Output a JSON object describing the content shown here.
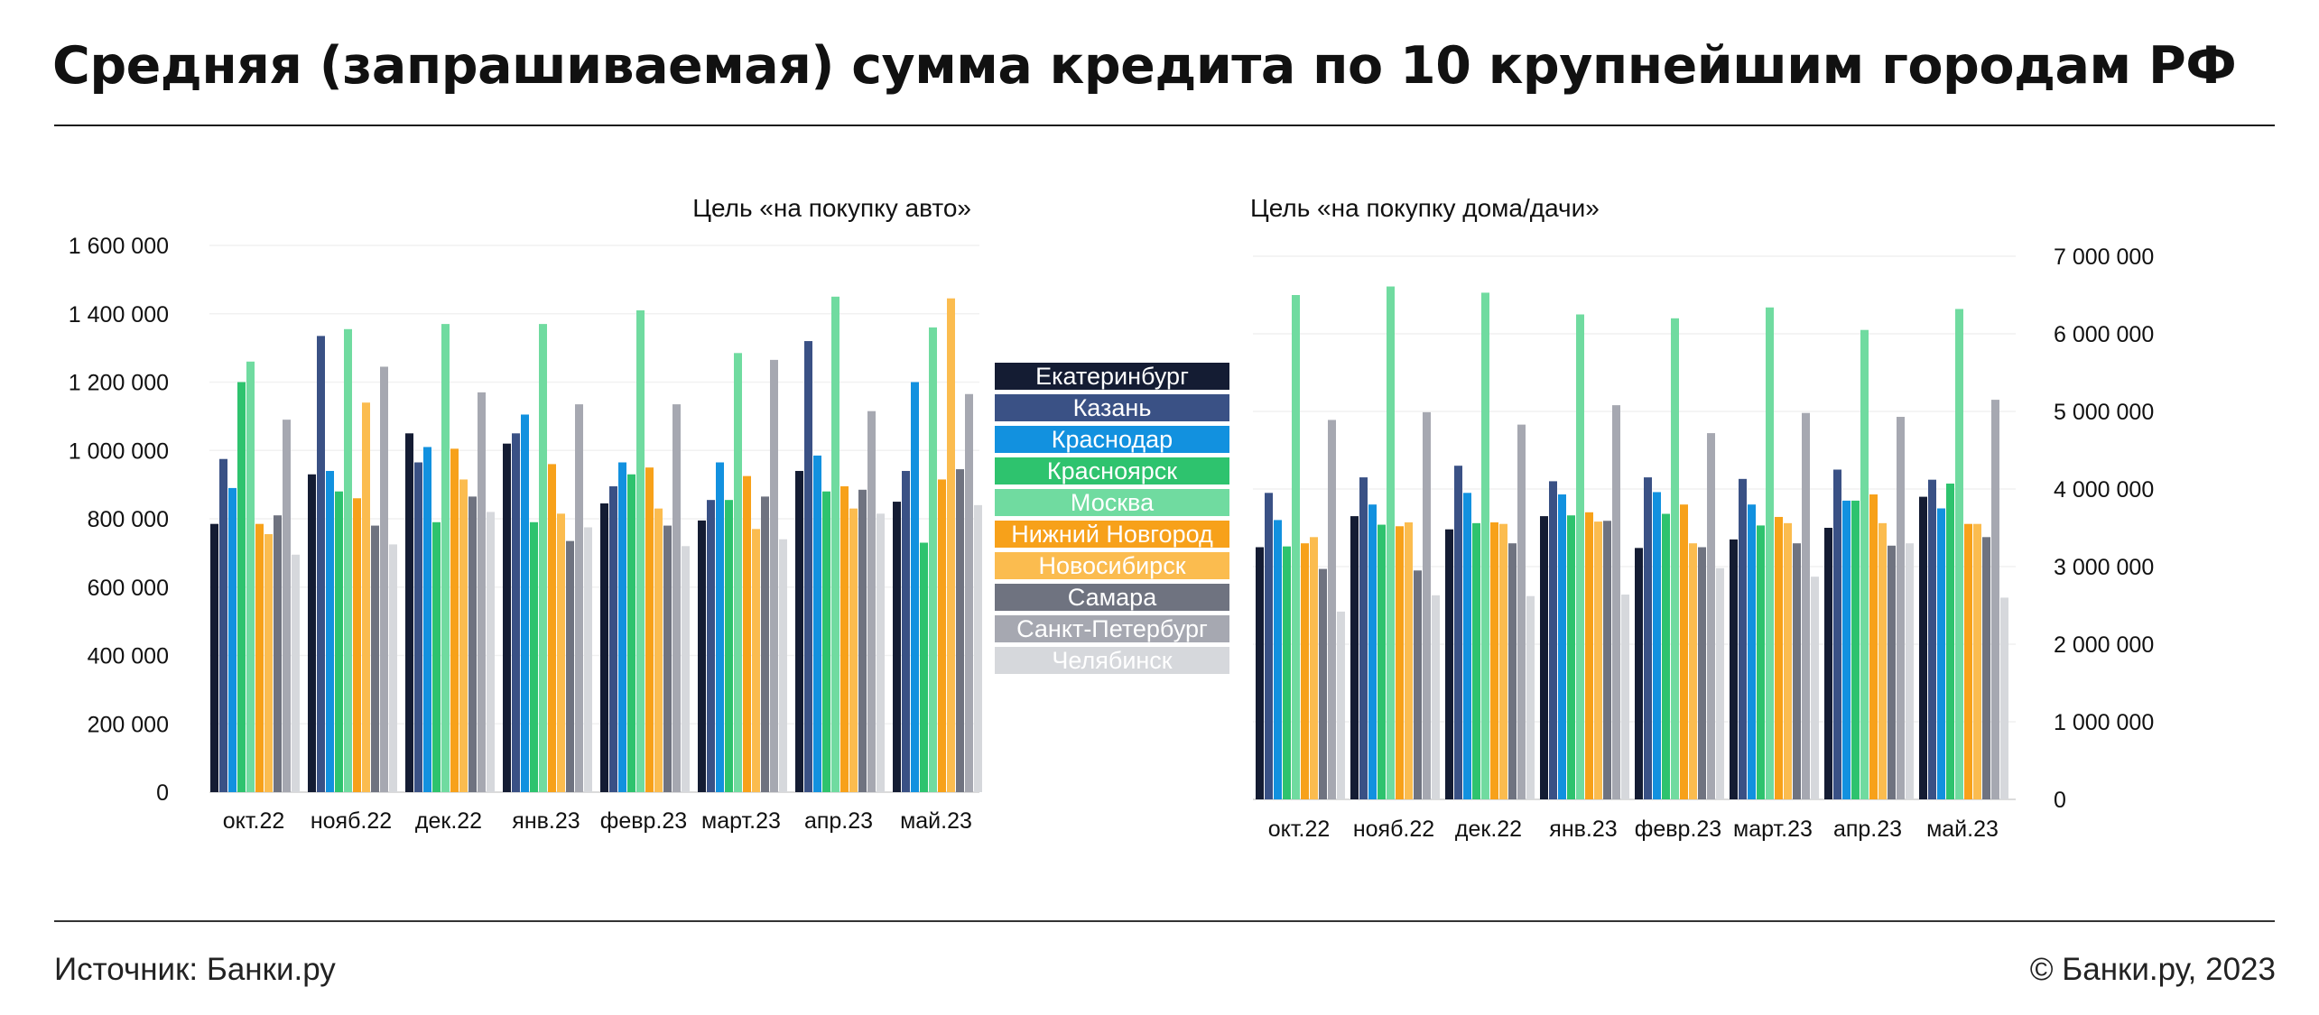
{
  "header": {
    "title": "Средняя (запрашиваемая) сумма кредита по 10 крупнейшим городам РФ"
  },
  "footer": {
    "source": "Источник: Банки.ру",
    "copyright": "© Банки.ру, 2023"
  },
  "colors": {
    "Екатеринбург": "#141c33",
    "Казань": "#3a5185",
    "Краснодар": "#1291df",
    "Красноярск": "#2ec36e",
    "Москва": "#70dba0",
    "Нижний Новгород": "#f7a11a",
    "Новосибирск": "#fbbc4f",
    "Самара": "#6f7380",
    "Санкт-Петербург": "#a6a8b1",
    "Челябинск": "#d6d8dc"
  },
  "legend": [
    "Екатеринбург",
    "Казань",
    "Краснодар",
    "Красноярск",
    "Москва",
    "Нижний Новгород",
    "Новосибирск",
    "Самара",
    "Санкт-Петербург",
    "Челябинск"
  ],
  "chart_data": [
    {
      "type": "bar",
      "subtitle": "Цель «на покупку авто»",
      "categories": [
        "окт.22",
        "нояб.22",
        "дек.22",
        "янв.23",
        "февр.23",
        "март.23",
        "апр.23",
        "май.23"
      ],
      "ylim": [
        0,
        1600000
      ],
      "yticks": [
        "0",
        "200 000",
        "400 000",
        "600 000",
        "800 000",
        "1 000 000",
        "1 200 000",
        "1 400 000",
        "1 600 000"
      ],
      "axis_side": "left",
      "series": [
        {
          "name": "Екатеринбург",
          "values": [
            785000,
            930000,
            1050000,
            1020000,
            845000,
            795000,
            940000,
            850000
          ]
        },
        {
          "name": "Казань",
          "values": [
            975000,
            1335000,
            965000,
            1050000,
            895000,
            855000,
            1320000,
            940000
          ]
        },
        {
          "name": "Краснодар",
          "values": [
            890000,
            940000,
            1010000,
            1105000,
            965000,
            965000,
            985000,
            1200000
          ]
        },
        {
          "name": "Красноярск",
          "values": [
            1200000,
            880000,
            790000,
            790000,
            930000,
            855000,
            880000,
            730000
          ]
        },
        {
          "name": "Москва",
          "values": [
            1260000,
            1355000,
            1370000,
            1370000,
            1410000,
            1285000,
            1450000,
            1360000
          ]
        },
        {
          "name": "Нижний Новгород",
          "values": [
            785000,
            860000,
            1005000,
            960000,
            950000,
            925000,
            895000,
            915000
          ]
        },
        {
          "name": "Новосибирск",
          "values": [
            755000,
            1140000,
            915000,
            815000,
            830000,
            770000,
            830000,
            1445000
          ]
        },
        {
          "name": "Самара",
          "values": [
            810000,
            780000,
            865000,
            735000,
            780000,
            865000,
            885000,
            945000
          ]
        },
        {
          "name": "Санкт-Петербург",
          "values": [
            1090000,
            1245000,
            1170000,
            1135000,
            1135000,
            1265000,
            1115000,
            1165000
          ]
        },
        {
          "name": "Челябинск",
          "values": [
            695000,
            725000,
            820000,
            775000,
            720000,
            740000,
            815000,
            840000
          ]
        }
      ]
    },
    {
      "type": "bar",
      "subtitle": "Цель «на покупку дома/дачи»",
      "categories": [
        "окт.22",
        "нояб.22",
        "дек.22",
        "янв.23",
        "февр.23",
        "март.23",
        "апр.23",
        "май.23"
      ],
      "ylim": [
        0,
        7000000
      ],
      "yticks": [
        "0",
        "1 000 000",
        "2 000 000",
        "3 000 000",
        "4 000 000",
        "5 000 000",
        "6 000 000",
        "7 000 000"
      ],
      "axis_side": "right",
      "series": [
        {
          "name": "Екатеринбург",
          "values": [
            3250000,
            3650000,
            3480000,
            3650000,
            3240000,
            3350000,
            3500000,
            3900000
          ]
        },
        {
          "name": "Казань",
          "values": [
            3950000,
            4150000,
            4300000,
            4100000,
            4150000,
            4130000,
            4250000,
            4120000
          ]
        },
        {
          "name": "Краснодар",
          "values": [
            3600000,
            3800000,
            3950000,
            3930000,
            3960000,
            3800000,
            3850000,
            3750000
          ]
        },
        {
          "name": "Красноярск",
          "values": [
            3260000,
            3540000,
            3560000,
            3660000,
            3680000,
            3530000,
            3850000,
            4070000
          ]
        },
        {
          "name": "Москва",
          "values": [
            6500000,
            6610000,
            6530000,
            6250000,
            6200000,
            6340000,
            6050000,
            6320000
          ]
        },
        {
          "name": "Нижний Новгород",
          "values": [
            3300000,
            3520000,
            3570000,
            3700000,
            3800000,
            3640000,
            3930000,
            3550000
          ]
        },
        {
          "name": "Новосибирск",
          "values": [
            3380000,
            3570000,
            3550000,
            3580000,
            3300000,
            3560000,
            3560000,
            3550000
          ]
        },
        {
          "name": "Самара",
          "values": [
            2970000,
            2950000,
            3300000,
            3590000,
            3250000,
            3300000,
            3270000,
            3380000
          ]
        },
        {
          "name": "Санкт-Петербург",
          "values": [
            4890000,
            4990000,
            4830000,
            5080000,
            4720000,
            4980000,
            4930000,
            5150000
          ]
        },
        {
          "name": "Челябинск",
          "values": [
            2420000,
            2630000,
            2620000,
            2640000,
            2980000,
            2870000,
            3300000,
            2600000
          ]
        }
      ]
    }
  ]
}
